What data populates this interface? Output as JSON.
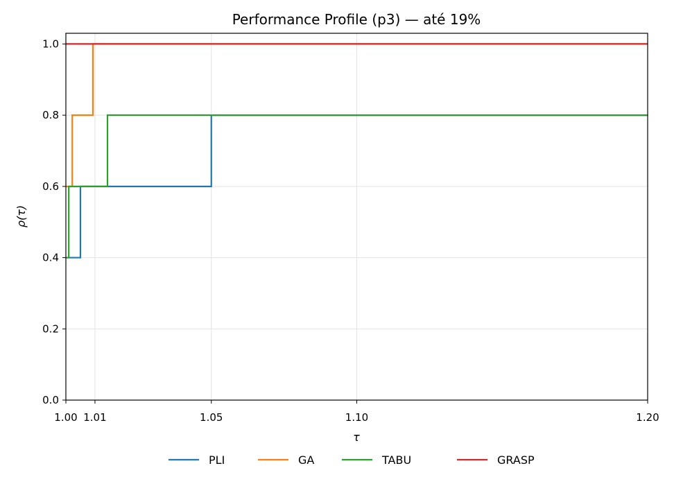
{
  "chart_data": {
    "type": "line",
    "step": "post",
    "title": "Performance Profile (p3) — até 19%",
    "xlabel": "τ",
    "ylabel": "ρ(τ)",
    "xlim": [
      1.0,
      1.2
    ],
    "ylim": [
      0.0,
      1.03
    ],
    "xticks": [
      1.0,
      1.01,
      1.05,
      1.1,
      1.2
    ],
    "xtick_labels": [
      "1.00",
      "1.01",
      "1.05",
      "1.10",
      "1.20"
    ],
    "yticks": [
      0.0,
      0.2,
      0.4,
      0.6,
      0.8,
      1.0
    ],
    "ytick_labels": [
      "0.0",
      "0.2",
      "0.4",
      "0.6",
      "0.8",
      "1.0"
    ],
    "grid": true,
    "legend_position": "bottom-center",
    "series": [
      {
        "name": "PLI",
        "color": "#1f77b4",
        "x": [
          1.0,
          1.005,
          1.05,
          1.2
        ],
        "y": [
          0.4,
          0.6,
          0.8,
          0.8
        ]
      },
      {
        "name": "GA",
        "color": "#ff7f0e",
        "x": [
          1.0,
          1.0022,
          1.0093,
          1.2
        ],
        "y": [
          0.6,
          0.8,
          1.0,
          1.0
        ]
      },
      {
        "name": "TABU",
        "color": "#2ca02c",
        "x": [
          1.0,
          1.001,
          1.0143,
          1.2
        ],
        "y": [
          0.4,
          0.6,
          0.8,
          0.8
        ]
      },
      {
        "name": "GRASP",
        "color": "#d62728",
        "x": [
          1.0,
          1.2
        ],
        "y": [
          1.0,
          1.0
        ]
      }
    ]
  }
}
